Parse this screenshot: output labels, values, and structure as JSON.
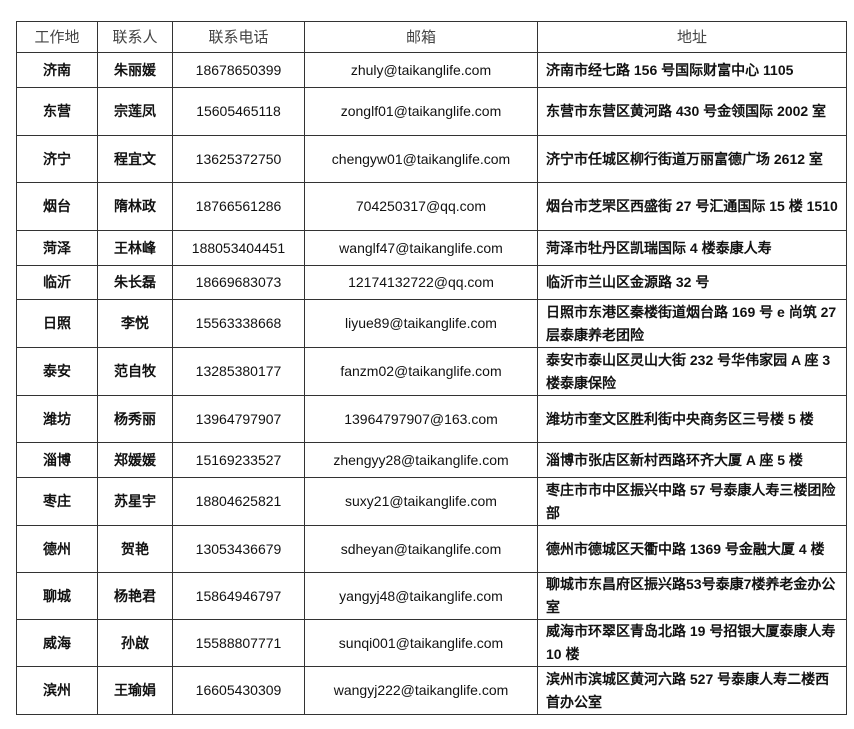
{
  "headers": [
    "工作地",
    "联系人",
    "联系电话",
    "邮箱",
    "地址"
  ],
  "rows": [
    {
      "city": "济南",
      "contact": "朱丽媛",
      "phone": "18678650399",
      "email": "zhuly@taikanglife.com",
      "address": "济南市经七路 156 号国际财富中心 1105"
    },
    {
      "city": "东营",
      "contact": "宗莲凤",
      "phone": "15605465118",
      "email": "zonglf01@taikanglife.com",
      "address": "东营市东营区黄河路 430 号金领国际 2002 室"
    },
    {
      "city": "济宁",
      "contact": "程宜文",
      "phone": "13625372750",
      "email": "chengyw01@taikanglife.com",
      "address": "济宁市任城区柳行街道万丽富德广场 2612 室"
    },
    {
      "city": "烟台",
      "contact": "隋林政",
      "phone": "18766561286",
      "email": "704250317@qq.com",
      "address": "烟台市芝罘区西盛街 27 号汇通国际 15 楼 1510"
    },
    {
      "city": "菏泽",
      "contact": "王林峰",
      "phone": "188053404451",
      "email": "wanglf47@taikanglife.com",
      "address": "菏泽市牡丹区凯瑞国际 4 楼泰康人寿"
    },
    {
      "city": "临沂",
      "contact": "朱长磊",
      "phone": "18669683073",
      "email": "12174132722@qq.com",
      "address": "临沂市兰山区金源路 32 号"
    },
    {
      "city": "日照",
      "contact": "李悦",
      "phone": "15563338668",
      "email": "liyue89@taikanglife.com",
      "address": "日照市东港区秦楼街道烟台路 169 号 e 尚筑 27 层泰康养老团险"
    },
    {
      "city": "泰安",
      "contact": "范自牧",
      "phone": "13285380177",
      "email": "fanzm02@taikanglife.com",
      "address": "泰安市泰山区灵山大街 232 号华伟家园 A 座 3 楼泰康保险"
    },
    {
      "city": "潍坊",
      "contact": "杨秀丽",
      "phone": "13964797907",
      "email": "13964797907@163.com",
      "address": "潍坊市奎文区胜利街中央商务区三号楼 5 楼"
    },
    {
      "city": "淄博",
      "contact": "郑媛媛",
      "phone": "15169233527",
      "email": "zhengyy28@taikanglife.com",
      "address": "淄博市张店区新村西路环齐大厦 A 座 5 楼"
    },
    {
      "city": "枣庄",
      "contact": "苏星宇",
      "phone": "18804625821",
      "email": "suxy21@taikanglife.com",
      "address": "枣庄市市中区振兴中路 57 号泰康人寿三楼团险部"
    },
    {
      "city": "德州",
      "contact": "贺艳",
      "phone": "13053436679",
      "email": "sdheyan@taikanglife.com",
      "address": "德州市德城区天衢中路 1369 号金融大厦 4 楼"
    },
    {
      "city": "聊城",
      "contact": "杨艳君",
      "phone": "15864946797",
      "email": "yangyj48@taikanglife.com",
      "address": "聊城市东昌府区振兴路53号泰康7楼养老金办公室"
    },
    {
      "city": "威海",
      "contact": "孙啟",
      "phone": "15588807771",
      "email": "sunqi001@taikanglife.com",
      "address": "威海市环翠区青岛北路 19 号招银大厦泰康人寿 10 楼"
    },
    {
      "city": "滨州",
      "contact": "王瑜娟",
      "phone": "16605430309",
      "email": "wangyj222@taikanglife.com",
      "address": "滨州市滨城区黄河六路 527 号泰康人寿二楼西首办公室"
    }
  ]
}
